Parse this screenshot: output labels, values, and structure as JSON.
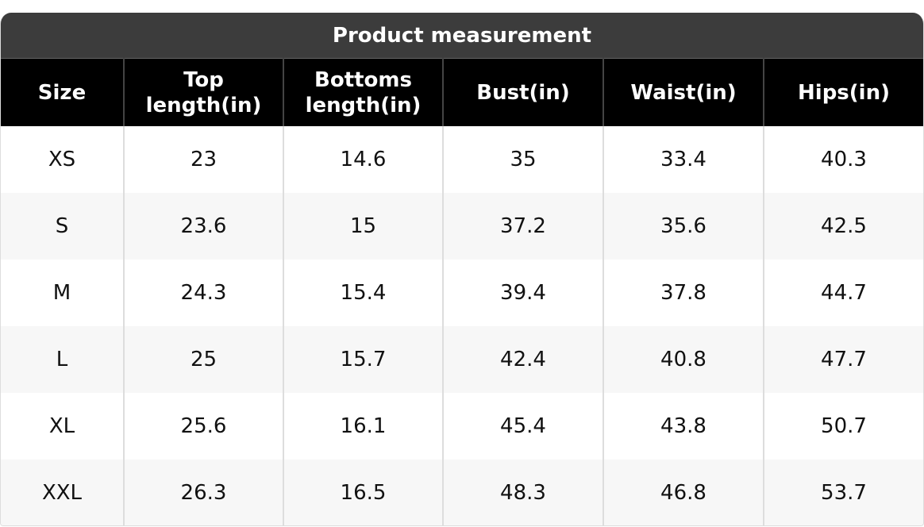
{
  "title": "Product measurement",
  "columns": [
    "Size",
    "Top length(in)",
    "Bottoms length(in)",
    "Bust(in)",
    "Waist(in)",
    "Hips(in)"
  ],
  "rows": [
    [
      "XS",
      "23",
      "14.6",
      "35",
      "33.4",
      "40.3"
    ],
    [
      "S",
      "23.6",
      "15",
      "37.2",
      "35.6",
      "42.5"
    ],
    [
      "M",
      "24.3",
      "15.4",
      "39.4",
      "37.8",
      "44.7"
    ],
    [
      "L",
      "25",
      "15.7",
      "42.4",
      "40.8",
      "47.7"
    ],
    [
      "XL",
      "25.6",
      "16.1",
      "45.4",
      "43.8",
      "50.7"
    ],
    [
      "XXL",
      "26.3",
      "16.5",
      "48.3",
      "46.8",
      "53.7"
    ]
  ]
}
